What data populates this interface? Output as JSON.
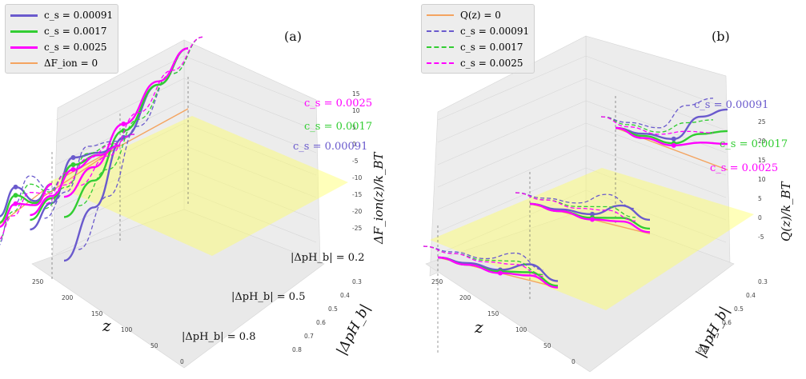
{
  "chart_data": [
    {
      "panel_label": "(a)",
      "type": "line",
      "projection": "3d",
      "x_axis": {
        "label": "z",
        "ticks": [
          "250",
          "200",
          "150",
          "100",
          "50",
          "0"
        ]
      },
      "y_axis": {
        "label": "|ΔpH_b|",
        "ticks": [
          "0.3",
          "0.4",
          "0.5",
          "0.6",
          "0.7",
          "0.8"
        ]
      },
      "z_axis": {
        "label": "ΔF_ion(z)/k_BT",
        "ticks": [
          "15",
          "10",
          "5",
          "0",
          "-5",
          "-10",
          "-15",
          "-20",
          "-25"
        ]
      },
      "legend": {
        "position": "top-left",
        "entries": [
          {
            "label": "c_s = 0.00091",
            "color": "#6a5acd",
            "dash": "solid"
          },
          {
            "label": "c_s = 0.0017",
            "color": "#32cd32",
            "dash": "solid"
          },
          {
            "label": "c_s = 0.0025",
            "color": "#ff00ff",
            "dash": "solid"
          },
          {
            "label": "ΔF_ion = 0",
            "color": "#f4a460",
            "dash": "solid"
          }
        ]
      },
      "annotations": [
        {
          "text": "|ΔpH_b| = 0.2"
        },
        {
          "text": "|ΔpH_b| = 0.5"
        },
        {
          "text": "|ΔpH_b| = 0.8"
        }
      ],
      "series_labels": [
        {
          "text": "c_s = 0.0025",
          "color": "#ff00ff"
        },
        {
          "text": "c_s = 0.0017",
          "color": "#32cd32"
        },
        {
          "text": "c_s = 0.00091",
          "color": "#6a5acd"
        }
      ],
      "series": [
        {
          "pH": 0.2,
          "cs": 0.00091,
          "x": [
            0,
            60,
            130,
            190,
            250
          ],
          "y": [
            18,
            12,
            2,
            -14,
            -25
          ]
        },
        {
          "pH": 0.2,
          "cs": 0.0017,
          "x": [
            0,
            60,
            130,
            190,
            250
          ],
          "y": [
            18,
            12,
            4,
            -6,
            -12
          ]
        },
        {
          "pH": 0.2,
          "cs": 0.0025,
          "x": [
            0,
            60,
            130,
            190,
            250
          ],
          "y": [
            18,
            13,
            6,
            -2,
            -6
          ]
        },
        {
          "pH": 0.5,
          "cs": 0.00091,
          "x": [
            0,
            60,
            130,
            190,
            250
          ],
          "y": [
            0,
            3,
            8,
            -5,
            -10
          ]
        },
        {
          "pH": 0.5,
          "cs": 0.0017,
          "x": [
            0,
            60,
            130,
            190,
            250
          ],
          "y": [
            0,
            2,
            5,
            -3,
            -6
          ]
        },
        {
          "pH": 0.5,
          "cs": 0.0025,
          "x": [
            0,
            60,
            130,
            190,
            250
          ],
          "y": [
            0,
            2,
            3,
            -2,
            -4
          ]
        },
        {
          "pH": 0.8,
          "cs": 0.00091,
          "x": [
            0,
            60,
            130,
            190,
            250
          ],
          "y": [
            0,
            -2,
            12,
            4,
            -10
          ]
        },
        {
          "pH": 0.8,
          "cs": 0.0017,
          "x": [
            0,
            60,
            130,
            190,
            250
          ],
          "y": [
            0,
            -3,
            8,
            1,
            -8
          ]
        },
        {
          "pH": 0.8,
          "cs": 0.0025,
          "x": [
            0,
            60,
            130,
            190,
            250
          ],
          "y": [
            0,
            -4,
            4,
            -1,
            -7
          ]
        }
      ]
    },
    {
      "panel_label": "(b)",
      "type": "line",
      "projection": "3d",
      "x_axis": {
        "label": "z",
        "ticks": [
          "250",
          "200",
          "150",
          "100",
          "50",
          "0"
        ]
      },
      "y_axis": {
        "label": "|ΔpH_b|",
        "ticks": [
          "0.3",
          "0.4",
          "0.5",
          "0.6",
          "0.7",
          "0.8"
        ]
      },
      "z_axis": {
        "label": "Q(z)/k_BT",
        "ticks": [
          "25",
          "20",
          "15",
          "10",
          "5",
          "0",
          "-5"
        ]
      },
      "legend": {
        "position": "top-left",
        "entries": [
          {
            "label": "Q(z) = 0",
            "color": "#f4a460",
            "dash": "solid"
          },
          {
            "label": "c_s = 0.00091",
            "color": "#6a5acd",
            "dash": "dashed"
          },
          {
            "label": "c_s = 0.0017",
            "color": "#32cd32",
            "dash": "dashed"
          },
          {
            "label": "c_s = 0.0025",
            "color": "#ff00ff",
            "dash": "dashed"
          }
        ]
      },
      "series_labels": [
        {
          "text": "c_s = 0.00091",
          "color": "#6a5acd"
        },
        {
          "text": "c_s = 0.0017",
          "color": "#32cd32"
        },
        {
          "text": "c_s = 0.0025",
          "color": "#ff00ff"
        }
      ],
      "series": [
        {
          "pH": 0.2,
          "cs": 0.00091,
          "x": [
            0,
            60,
            130,
            190,
            250
          ],
          "y": [
            0,
            2,
            5,
            20,
            28
          ]
        },
        {
          "pH": 0.2,
          "cs": 0.0017,
          "x": [
            0,
            60,
            130,
            190,
            250
          ],
          "y": [
            0,
            1,
            3,
            12,
            18
          ]
        },
        {
          "pH": 0.2,
          "cs": 0.0025,
          "x": [
            0,
            60,
            130,
            190,
            250
          ],
          "y": [
            0,
            0,
            2,
            8,
            12
          ]
        },
        {
          "pH": 0.5,
          "cs": 0.00091,
          "x": [
            0,
            60,
            130,
            190,
            250
          ],
          "y": [
            0,
            1,
            3,
            12,
            8
          ]
        },
        {
          "pH": 0.5,
          "cs": 0.0017,
          "x": [
            0,
            60,
            130,
            190,
            250
          ],
          "y": [
            0,
            0,
            1,
            5,
            3
          ]
        },
        {
          "pH": 0.5,
          "cs": 0.0025,
          "x": [
            0,
            60,
            130,
            190,
            250
          ],
          "y": [
            0,
            0,
            0,
            3,
            1
          ]
        },
        {
          "pH": 0.8,
          "cs": 0.00091,
          "x": [
            0,
            60,
            130,
            190,
            250
          ],
          "y": [
            0,
            1,
            2,
            10,
            4
          ]
        },
        {
          "pH": 0.8,
          "cs": 0.0017,
          "x": [
            0,
            60,
            130,
            190,
            250
          ],
          "y": [
            0,
            0,
            1,
            5,
            1
          ]
        },
        {
          "pH": 0.8,
          "cs": 0.0025,
          "x": [
            0,
            60,
            130,
            190,
            250
          ],
          "y": [
            0,
            0,
            0,
            3,
            0
          ]
        }
      ]
    }
  ]
}
